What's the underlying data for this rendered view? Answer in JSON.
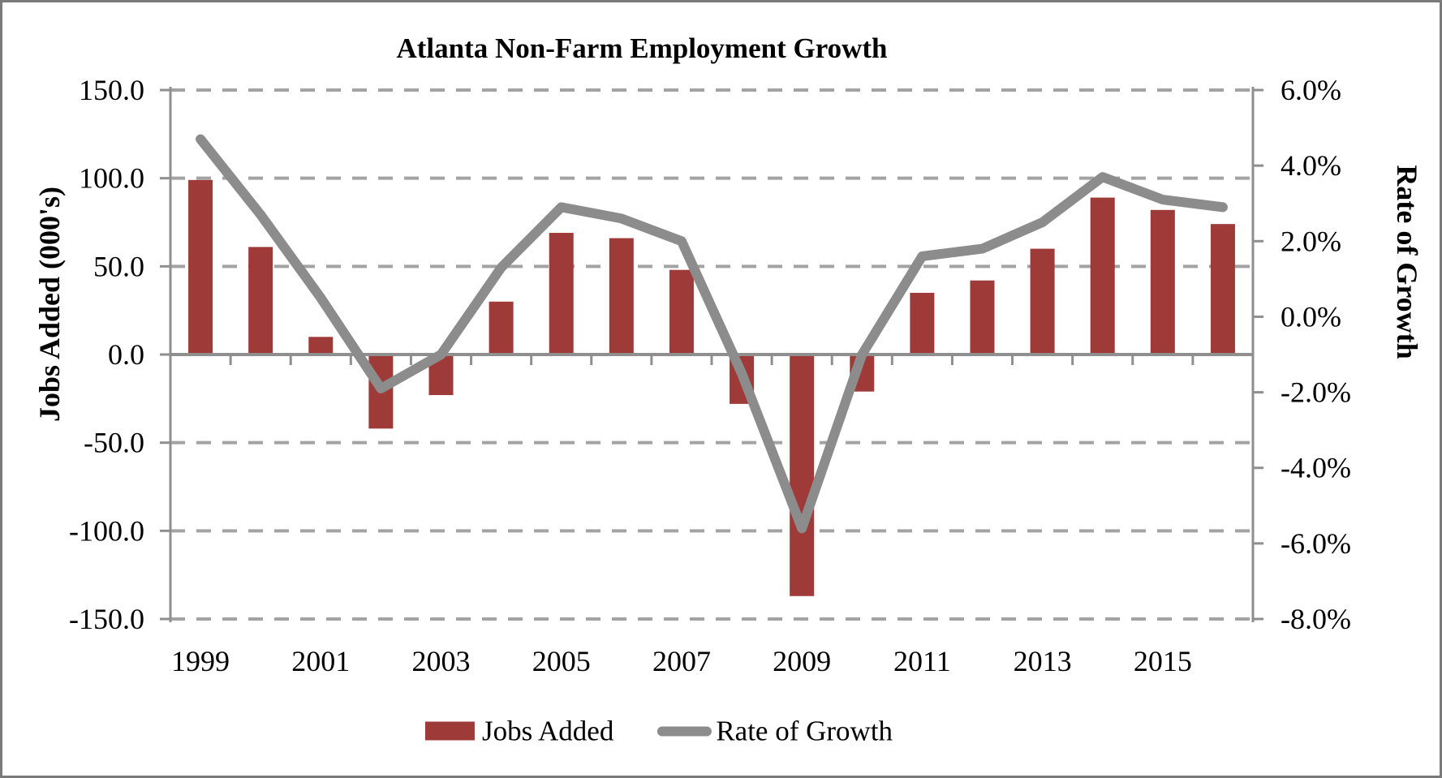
{
  "title": "Atlanta Non-Farm Employment Growth",
  "colors": {
    "bar": "#9E3B38",
    "line": "#8C8C8C",
    "grid": "#A3A3A3",
    "axis": "#8F8F8F",
    "border": "#7A7A7A",
    "text": "#000000"
  },
  "left_axis": {
    "title": "Jobs Added (000's)",
    "tick_labels": [
      "150.0",
      "100.0",
      "50.0",
      "0.0",
      "-50.0",
      "-100.0",
      "-150.0"
    ],
    "tick_values": [
      150,
      100,
      50,
      0,
      -50,
      -100,
      -150
    ],
    "min": -150,
    "max": 150
  },
  "right_axis": {
    "title": "Rate of Growth",
    "tick_labels": [
      "6.0%",
      "4.0%",
      "2.0%",
      "0.0%",
      "-2.0%",
      "-4.0%",
      "-6.0%",
      "-8.0%"
    ],
    "tick_values": [
      6,
      4,
      2,
      0,
      -2,
      -4,
      -6,
      -8
    ],
    "min": -8,
    "max": 6
  },
  "x_axis": {
    "visible_labels": [
      "1999",
      "2001",
      "2003",
      "2005",
      "2007",
      "2009",
      "2011",
      "2013",
      "2015"
    ],
    "label_step": 2
  },
  "legend": {
    "bar_label": "Jobs Added",
    "line_label": "Rate of Growth",
    "position": "bottom"
  },
  "chart_data": {
    "type": "combo",
    "title": "Atlanta Non-Farm Employment Growth",
    "categories": [
      1999,
      2000,
      2001,
      2002,
      2003,
      2004,
      2005,
      2006,
      2007,
      2008,
      2009,
      2010,
      2011,
      2012,
      2013,
      2014,
      2015,
      2016
    ],
    "series": [
      {
        "name": "Jobs Added",
        "type": "bar",
        "axis": "left",
        "units": "thousands of jobs",
        "values": [
          99,
          61,
          10,
          -42,
          -23,
          30,
          69,
          66,
          48,
          -28,
          -137,
          -21,
          35,
          42,
          60,
          89,
          82,
          74
        ]
      },
      {
        "name": "Rate of Growth",
        "type": "line",
        "axis": "right",
        "units": "percent",
        "values": [
          4.7,
          2.7,
          0.5,
          -1.9,
          -1.0,
          1.3,
          2.9,
          2.6,
          2.0,
          -1.5,
          -5.6,
          -1.0,
          1.6,
          1.8,
          2.5,
          3.7,
          3.1,
          2.9
        ]
      }
    ],
    "left_ylabel": "Jobs Added (000's)",
    "right_ylabel": "Rate of Growth",
    "left_ylim": [
      -150,
      150
    ],
    "right_ylim": [
      -8,
      6
    ],
    "grid": "horizontal-dashed",
    "legend_position": "bottom"
  }
}
